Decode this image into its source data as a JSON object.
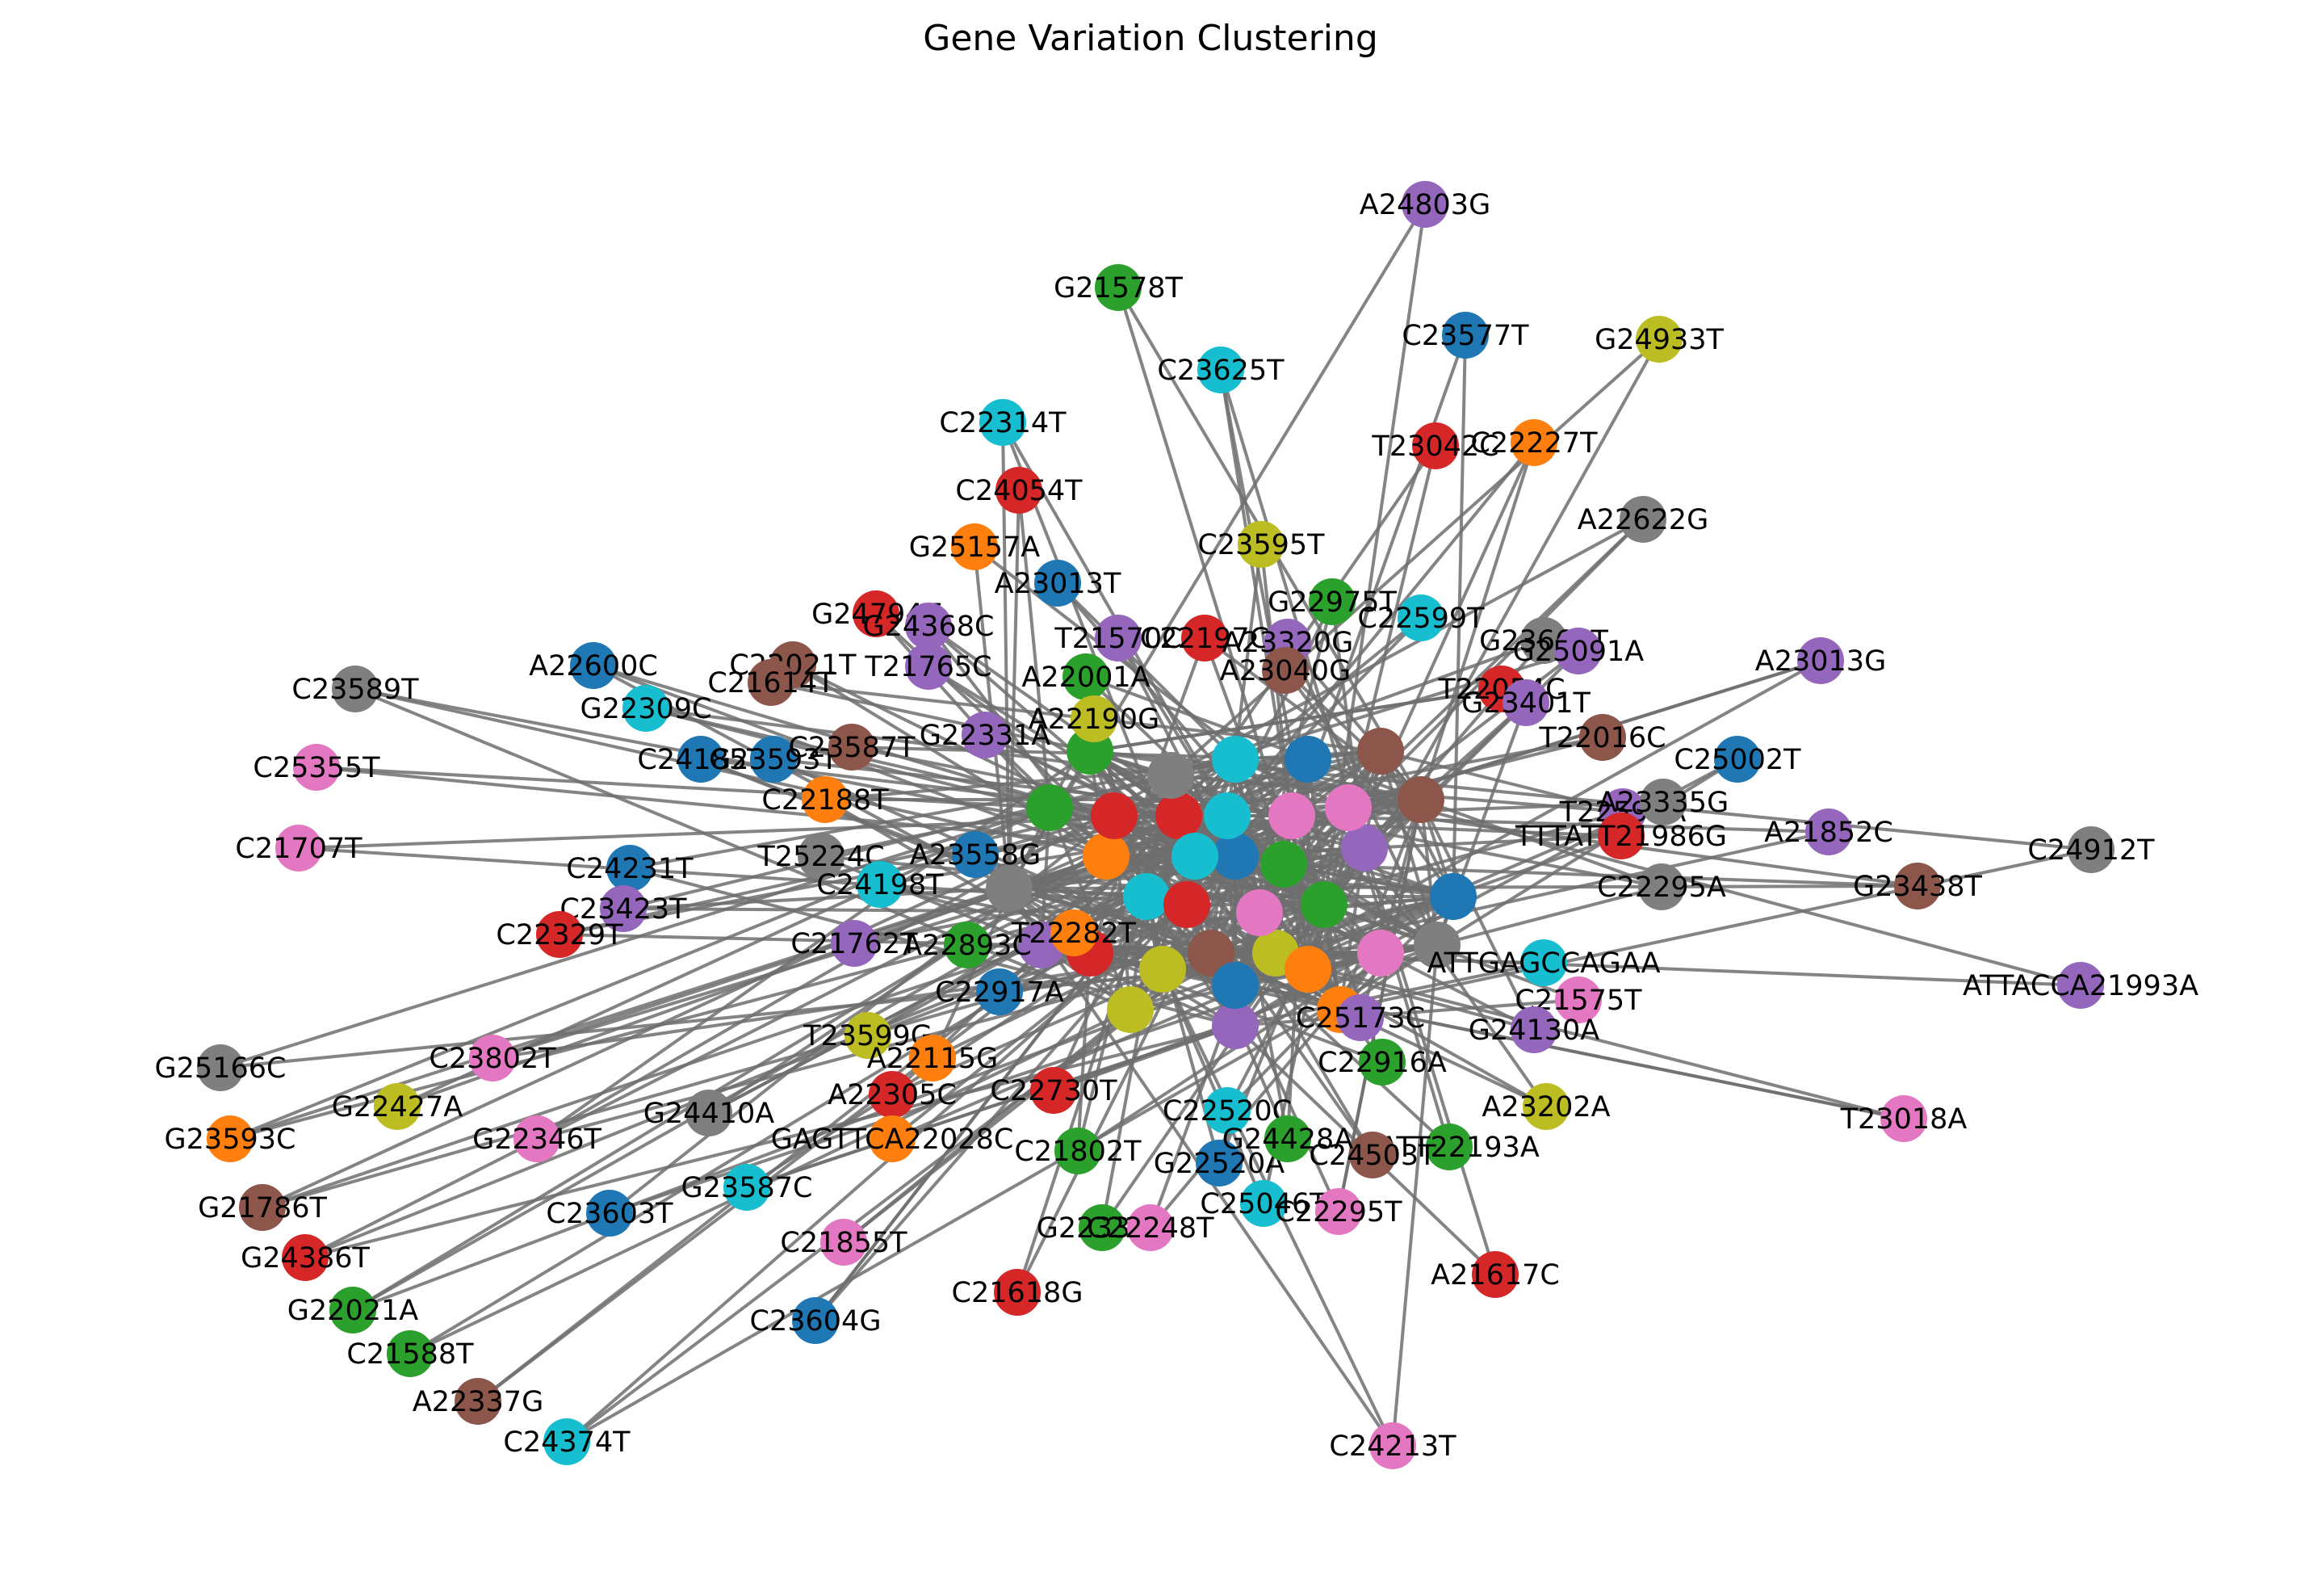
{
  "title": "Gene Variation Clustering",
  "colors": [
    "#1f77b4",
    "#ff7f0e",
    "#2ca02c",
    "#d62728",
    "#9467bd",
    "#8c564b",
    "#e377c2",
    "#7f7f7f",
    "#bcbd22",
    "#17becf"
  ],
  "edge_color": "#6e6e6e",
  "nodes": [
    {
      "label": "A24803G",
      "color": 4
    },
    {
      "label": "G21578T",
      "color": 2
    },
    {
      "label": "C23577T",
      "color": 0
    },
    {
      "label": "G24933T",
      "color": 8
    },
    {
      "label": "C23625T",
      "color": 9
    },
    {
      "label": "C22314T",
      "color": 9
    },
    {
      "label": "T23042C",
      "color": 3
    },
    {
      "label": "C22227T",
      "color": 1
    },
    {
      "label": "C24054T",
      "color": 3
    },
    {
      "label": "A22622G",
      "color": 7
    },
    {
      "label": "G25157A",
      "color": 1
    },
    {
      "label": "C23595T",
      "color": 8
    },
    {
      "label": "A23013T",
      "color": 0
    },
    {
      "label": "G22975T",
      "color": 2
    },
    {
      "label": "G24794T",
      "color": 3
    },
    {
      "label": "G24368C",
      "color": 4
    },
    {
      "label": "C22599T",
      "color": 9
    },
    {
      "label": "T21570C",
      "color": 4
    },
    {
      "label": "C22197C",
      "color": 3
    },
    {
      "label": "A23320G",
      "color": 4
    },
    {
      "label": "G23663T",
      "color": 7
    },
    {
      "label": "G25091A",
      "color": 4
    },
    {
      "label": "A23013G",
      "color": 4
    },
    {
      "label": "A22600C",
      "color": 0
    },
    {
      "label": "C22021T",
      "color": 5
    },
    {
      "label": "C21614T",
      "color": 5
    },
    {
      "label": "T21765C",
      "color": 4
    },
    {
      "label": "A23040G",
      "color": 5
    },
    {
      "label": "A22001A",
      "color": 2
    },
    {
      "label": "C23589T",
      "color": 7
    },
    {
      "label": "G22309C",
      "color": 9
    },
    {
      "label": "T22054C",
      "color": 3
    },
    {
      "label": "G23401T",
      "color": 4
    },
    {
      "label": "T22016C",
      "color": 5
    },
    {
      "label": "C25002T",
      "color": 0
    },
    {
      "label": "C24185T",
      "color": 0
    },
    {
      "label": "G23593T",
      "color": 0
    },
    {
      "label": "C23587T",
      "color": 5
    },
    {
      "label": "G22331A",
      "color": 4
    },
    {
      "label": "A22190G",
      "color": 8
    },
    {
      "label": "C25355T",
      "color": 6
    },
    {
      "label": "C22188T",
      "color": 1
    },
    {
      "label": "T22599A",
      "color": 4
    },
    {
      "label": "A23335G",
      "color": 7
    },
    {
      "label": "A21852C",
      "color": 4
    },
    {
      "label": "C21707T",
      "color": 6
    },
    {
      "label": "C24231T",
      "color": 0
    },
    {
      "label": "T25224C",
      "color": 7
    },
    {
      "label": "A23558G",
      "color": 0
    },
    {
      "label": "TTTATT21986G",
      "color": 3
    },
    {
      "label": "C24912T",
      "color": 7
    },
    {
      "label": "G23438T",
      "color": 5
    },
    {
      "label": "C22295A",
      "color": 7
    },
    {
      "label": "C23423T",
      "color": 4
    },
    {
      "label": "C24198T",
      "color": 9
    },
    {
      "label": "C22329T",
      "color": 3
    },
    {
      "label": "C21762T",
      "color": 4
    },
    {
      "label": "A22893C",
      "color": 2
    },
    {
      "label": "ATTGAGCCAGAA",
      "color": 9
    },
    {
      "label": "C21575T",
      "color": 6
    },
    {
      "label": "ATTACCA21993A",
      "color": 4
    },
    {
      "label": "T23599G",
      "color": 8
    },
    {
      "label": "C22917A",
      "color": 0
    },
    {
      "label": "G25166C",
      "color": 7
    },
    {
      "label": "C23802T",
      "color": 6
    },
    {
      "label": "A22115G",
      "color": 1
    },
    {
      "label": "C22916A",
      "color": 2
    },
    {
      "label": "G24130A",
      "color": 4
    },
    {
      "label": "G22427A",
      "color": 8
    },
    {
      "label": "A22305C",
      "color": 3
    },
    {
      "label": "C22730T",
      "color": 3
    },
    {
      "label": "C22520C",
      "color": 9
    },
    {
      "label": "A23202A",
      "color": 8
    },
    {
      "label": "G24410A",
      "color": 7
    },
    {
      "label": "G23593C",
      "color": 1
    },
    {
      "label": "GAGTTCA22028C",
      "color": 1
    },
    {
      "label": "C21802T",
      "color": 2
    },
    {
      "label": "AATT22193A",
      "color": 2
    },
    {
      "label": "G22346T",
      "color": 6
    },
    {
      "label": "C24503T",
      "color": 5
    },
    {
      "label": "T23018A",
      "color": 6
    },
    {
      "label": "G21786T",
      "color": 5
    },
    {
      "label": "G23587C",
      "color": 9
    },
    {
      "label": "G22520A",
      "color": 0
    },
    {
      "label": "C25046T",
      "color": 9
    },
    {
      "label": "C22295T",
      "color": 6
    },
    {
      "label": "C23603T",
      "color": 0
    },
    {
      "label": "G22336A",
      "color": 2
    },
    {
      "label": "C22248T",
      "color": 6
    },
    {
      "label": "G24386T",
      "color": 3
    },
    {
      "label": "C21855T",
      "color": 6
    },
    {
      "label": "A21617C",
      "color": 3
    },
    {
      "label": "G22021A",
      "color": 2
    },
    {
      "label": "C21618G",
      "color": 3
    },
    {
      "label": "C21588T",
      "color": 2
    },
    {
      "label": "C23604G",
      "color": 0
    },
    {
      "label": "A22337G",
      "color": 5
    },
    {
      "label": "C24374T",
      "color": 9
    },
    {
      "label": "C24213T",
      "color": 6
    },
    {
      "label": "G24428A",
      "color": 2
    },
    {
      "label": "C25173C",
      "color": 4
    },
    {
      "label": "T22282T",
      "color": 1
    }
  ]
}
